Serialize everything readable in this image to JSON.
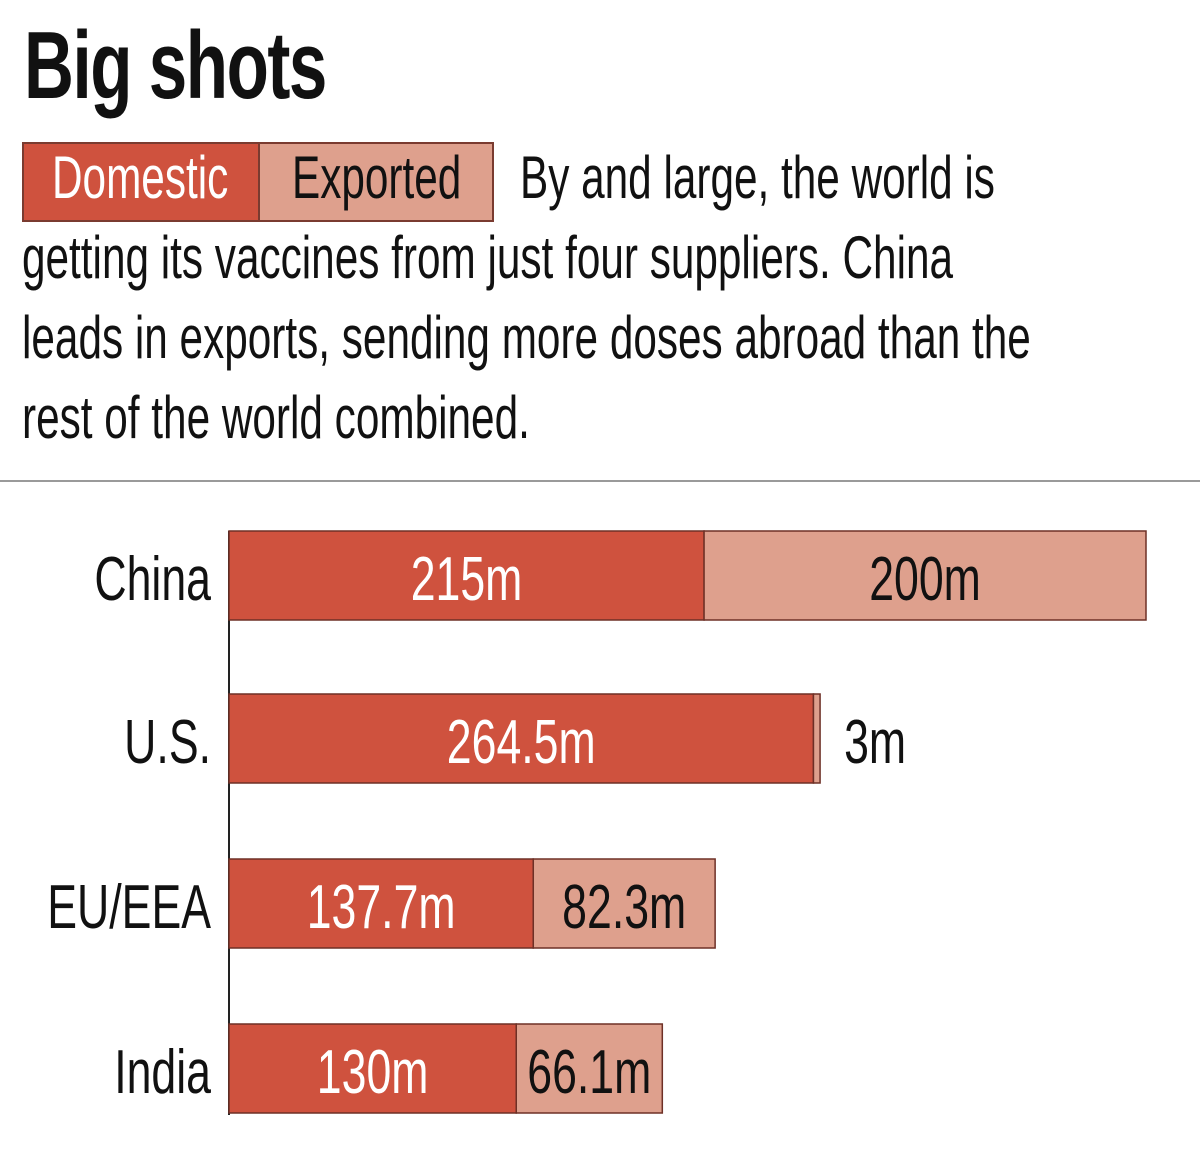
{
  "title": "Big shots",
  "legend": {
    "domestic": "Domestic",
    "exported": "Exported"
  },
  "intro_lines": [
    "By and large, the world is",
    "getting its vaccines from just four suppliers. China",
    "leads in exports, sending more doses abroad than the",
    "rest of the world combined."
  ],
  "colors": {
    "domestic": "#cf523e",
    "exported": "#dea08d",
    "outline": "#6e3026"
  },
  "chart_data": {
    "type": "bar",
    "orientation": "horizontal",
    "stacked": true,
    "categories": [
      "China",
      "U.S.",
      "EU/EEA",
      "India"
    ],
    "series": [
      {
        "name": "Domestic",
        "values": [
          215,
          264.5,
          137.7,
          130
        ],
        "labels": [
          "215m",
          "264.5m",
          "137.7m",
          "130m"
        ]
      },
      {
        "name": "Exported",
        "values": [
          200,
          3,
          82.3,
          66.1
        ],
        "labels": [
          "200m",
          "3m",
          "82.3m",
          "66.1m"
        ]
      }
    ],
    "units": "m",
    "xlim": [
      0,
      415
    ],
    "grid": false,
    "legend": "top-left"
  }
}
